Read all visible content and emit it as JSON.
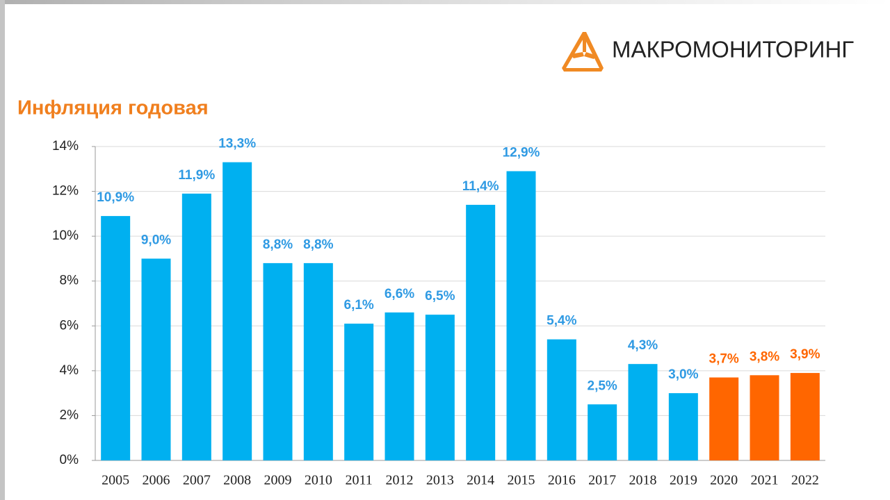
{
  "brand": "МАКРОМОНИТОРИНГ",
  "chart_data": {
    "type": "bar",
    "title": "Инфляция годовая",
    "categories": [
      "2005",
      "2006",
      "2007",
      "2008",
      "2009",
      "2010",
      "2011",
      "2012",
      "2013",
      "2014",
      "2015",
      "2016",
      "2017",
      "2018",
      "2019",
      "2020",
      "2021",
      "2022"
    ],
    "values": [
      10.9,
      9.0,
      11.9,
      13.3,
      8.8,
      8.8,
      6.1,
      6.6,
      6.5,
      11.4,
      12.9,
      5.4,
      2.5,
      4.3,
      3.0,
      3.7,
      3.8,
      3.9
    ],
    "value_labels": [
      "10,9%",
      "9,0%",
      "11,9%",
      "13,3%",
      "8,8%",
      "8,8%",
      "6,1%",
      "6,6%",
      "6,5%",
      "11,4%",
      "12,9%",
      "5,4%",
      "2,5%",
      "4,3%",
      "3,0%",
      "3,7%",
      "3,8%",
      "3,9%"
    ],
    "colors": [
      "#00b0f0",
      "#00b0f0",
      "#00b0f0",
      "#00b0f0",
      "#00b0f0",
      "#00b0f0",
      "#00b0f0",
      "#00b0f0",
      "#00b0f0",
      "#00b0f0",
      "#00b0f0",
      "#00b0f0",
      "#00b0f0",
      "#00b0f0",
      "#00b0f0",
      "#ff6600",
      "#ff6600",
      "#ff6600"
    ],
    "ylim": [
      0,
      14
    ],
    "yticks": [
      {
        "value": 0,
        "label": "0%"
      },
      {
        "value": 2,
        "label": "2%"
      },
      {
        "value": 4,
        "label": "4%"
      },
      {
        "value": 6,
        "label": "6%"
      },
      {
        "value": 8,
        "label": "8%"
      },
      {
        "value": 10,
        "label": "10%"
      },
      {
        "value": 12,
        "label": "12%"
      },
      {
        "value": 14,
        "label": "14%"
      }
    ],
    "grid": true
  }
}
